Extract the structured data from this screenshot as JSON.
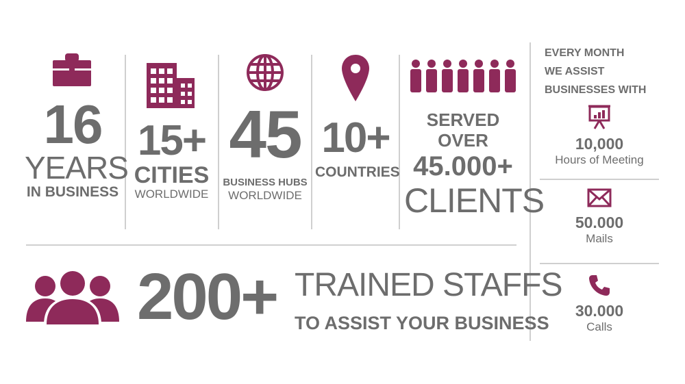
{
  "colors": {
    "accent": "#8e2a5a",
    "text": "#6d6d6d",
    "divider": "#cfcfcf"
  },
  "icons": [
    "briefcase-icon",
    "buildings-icon",
    "globe-icon",
    "location-pin-icon",
    "people-row-icon",
    "presentation-board-icon",
    "envelope-icon",
    "phone-icon",
    "team-icon"
  ],
  "stats": {
    "years": {
      "number": "16",
      "line1": "YEARS",
      "line2": "IN BUSINESS"
    },
    "cities": {
      "number": "15+",
      "label": "CITIES",
      "sub": "WORLDWIDE"
    },
    "hubs": {
      "number": "45",
      "label": "BUSINESS HUBS",
      "sub": "WORLDWIDE"
    },
    "countries": {
      "number": "10+",
      "label": "COUNTRIES"
    },
    "clients": {
      "line1": "SERVED OVER",
      "line2": "45.000+",
      "line3": "CLIENTS"
    },
    "staff": {
      "number": "200+",
      "line1": "TRAINED STAFFS",
      "line2": "TO ASSIST YOUR BUSINESS"
    }
  },
  "monthly": {
    "heading_1": "EVERY MONTH",
    "heading_2": "WE ASSIST",
    "heading_3": "BUSINESSES WITH",
    "items": [
      {
        "value": "10,000",
        "label": "Hours of Meeting"
      },
      {
        "value": "50.000",
        "label": "Mails"
      },
      {
        "value": "30.000",
        "label": "Calls"
      }
    ]
  }
}
